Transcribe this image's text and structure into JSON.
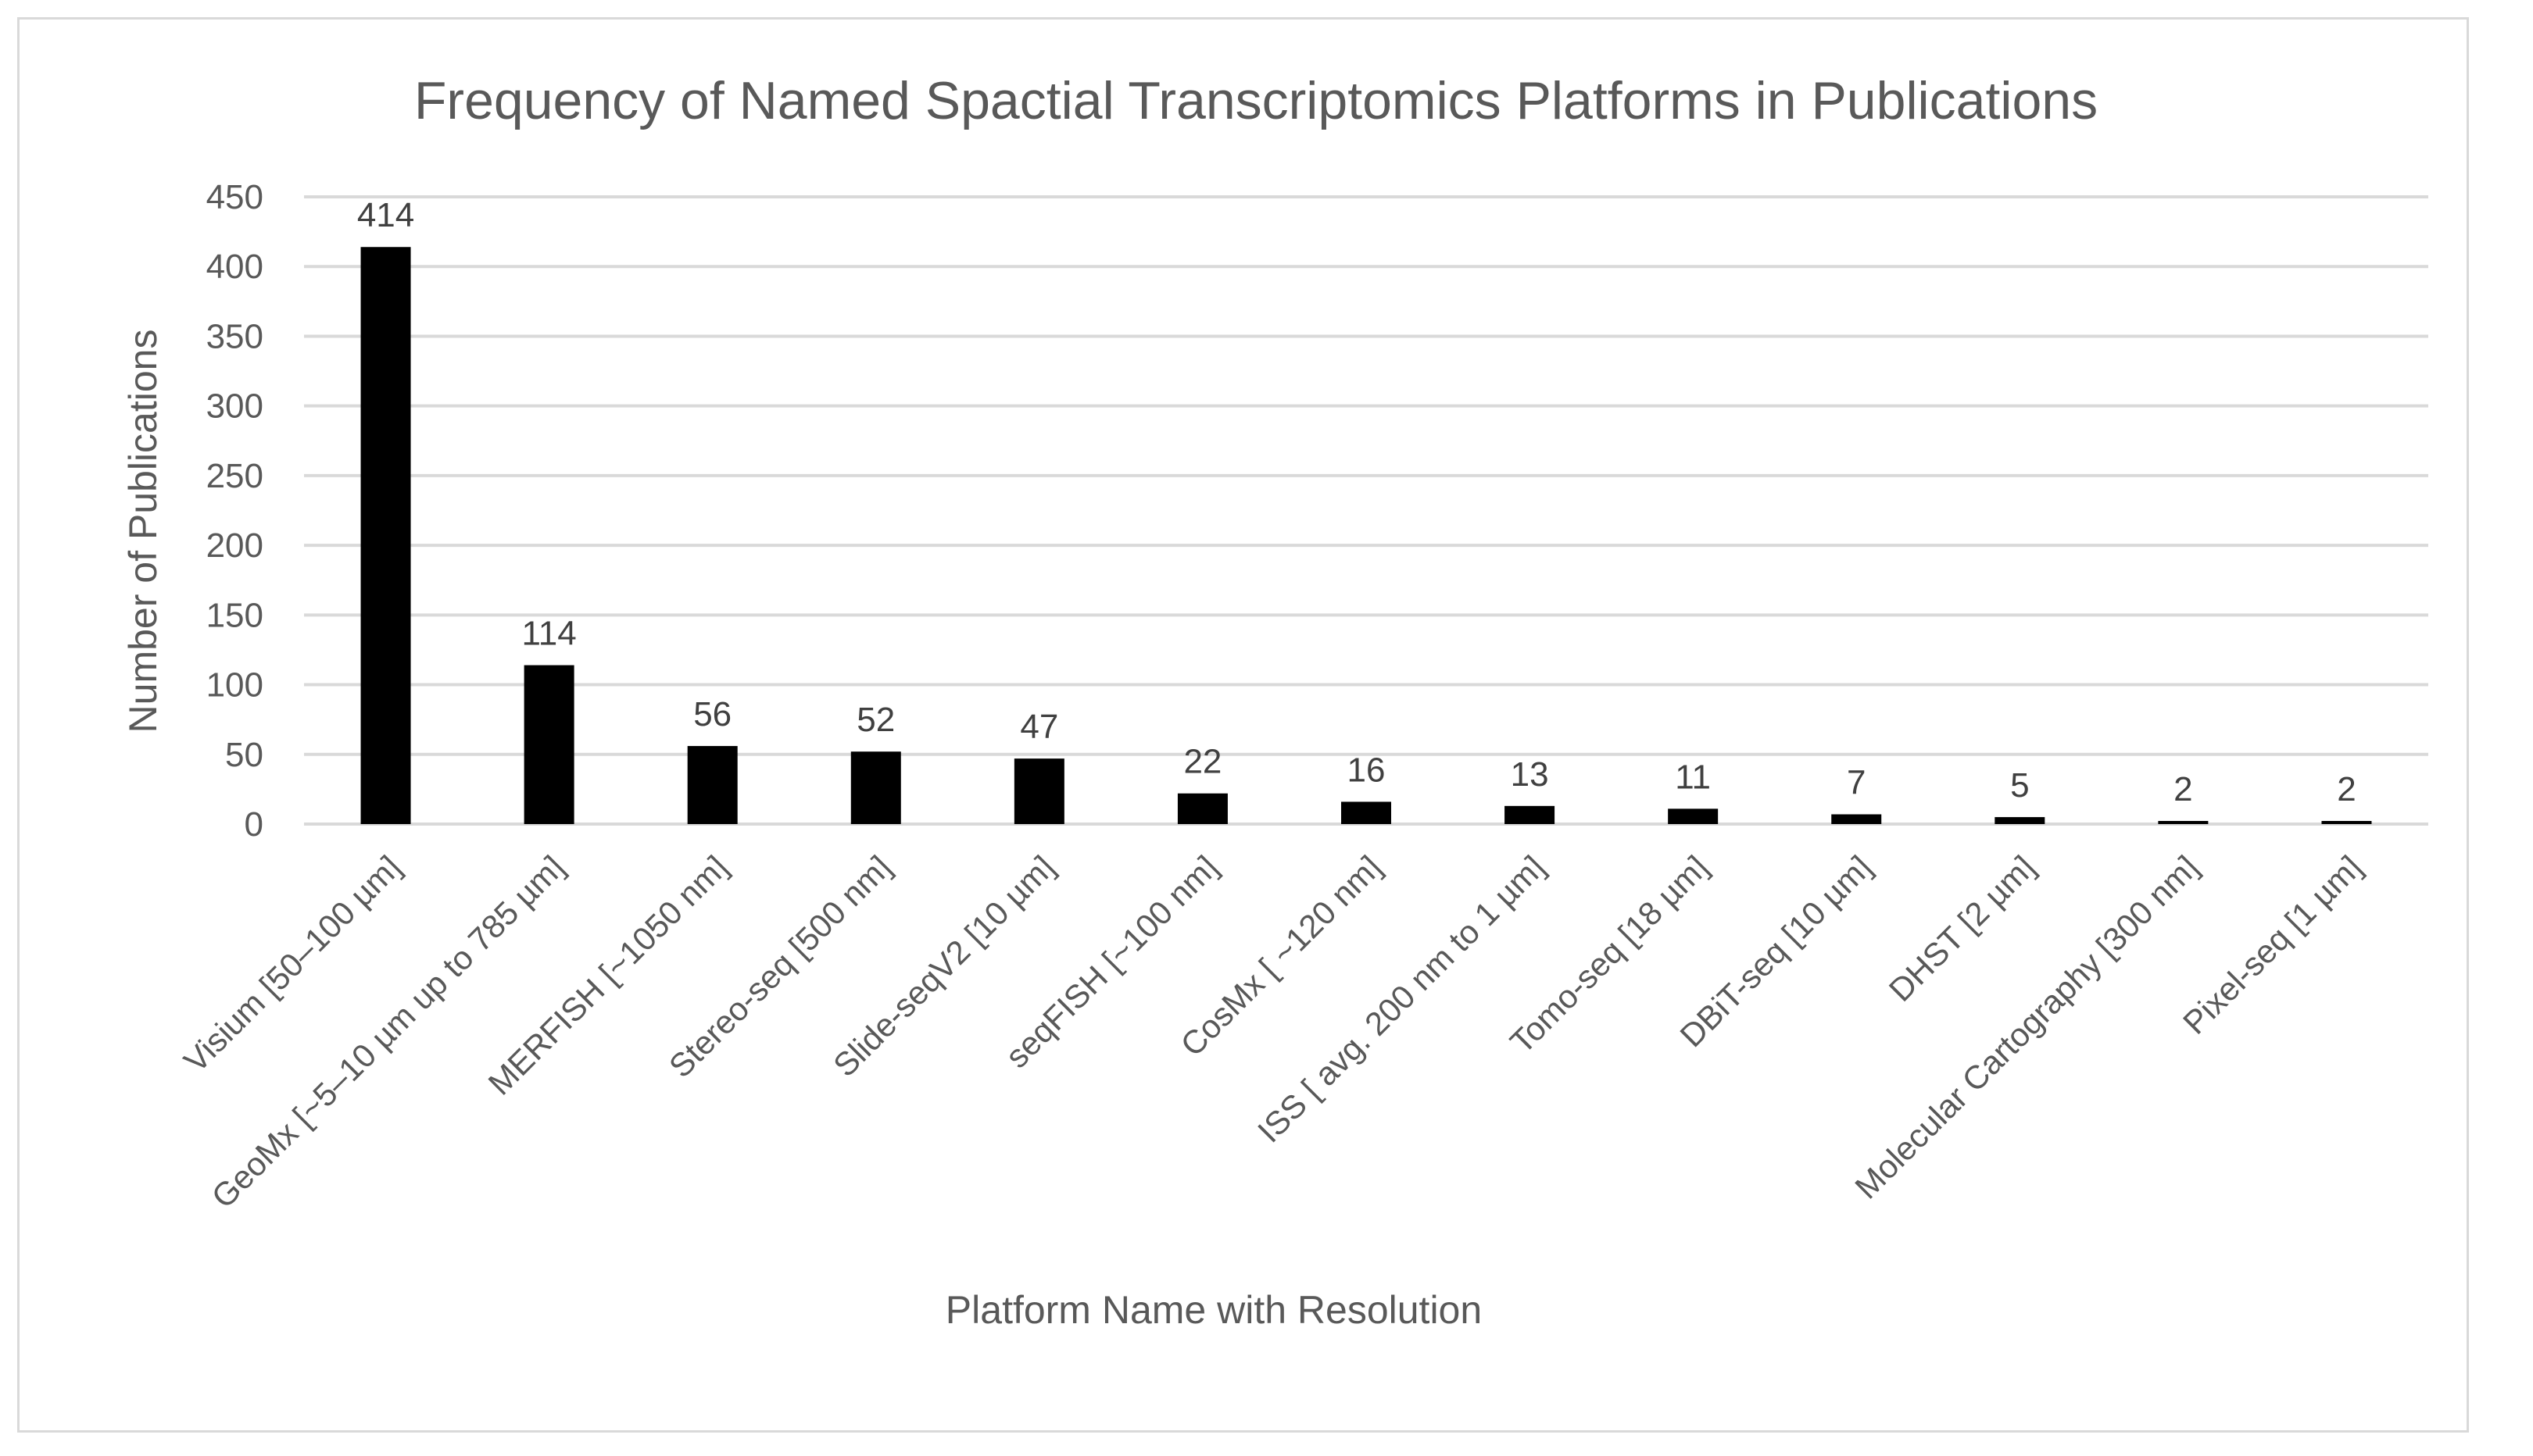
{
  "chart_data": {
    "type": "bar",
    "title": "Frequency of Named Spactial Transcriptomics Platforms in Publications",
    "xlabel": "Platform Name with Resolution",
    "ylabel": "Number of Publications",
    "ylim": [
      0,
      450
    ],
    "yticks": [
      0,
      50,
      100,
      150,
      200,
      250,
      300,
      350,
      400,
      450
    ],
    "grid": true,
    "legend": "none",
    "bar_color": "#000000",
    "categories": [
      "Visium [50–100 µm]",
      "GeoMx [~5–10 µm up to 785 µm]",
      "MERFISH [~1050 nm]",
      "Stereo-seq [500 nm]",
      "Slide-seqV2 [10 µm]",
      "seqFISH [~100 nm]",
      "CosMx [ ~120 nm]",
      "ISS [ avg. 200 nm to 1 µm]",
      "Tomo-seq [18 µm]",
      "DBiT-seq [10 µm]",
      "DHST [2 µm]",
      "Molecular Cartography [300 nm]",
      "Pixel-seq [1 µm]"
    ],
    "values": [
      414,
      114,
      56,
      52,
      47,
      22,
      16,
      13,
      11,
      7,
      5,
      2,
      2
    ]
  }
}
